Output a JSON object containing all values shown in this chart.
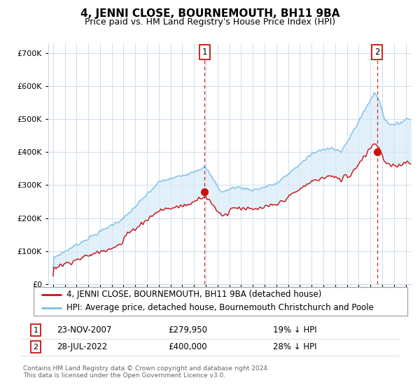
{
  "title": "4, JENNI CLOSE, BOURNEMOUTH, BH11 9BA",
  "subtitle": "Price paid vs. HM Land Registry's House Price Index (HPI)",
  "hpi_color": "#7dbfe8",
  "price_paid_color": "#cc1111",
  "dashed_line_color": "#cc1111",
  "fill_color": "#d6eaf8",
  "background_color": "#ffffff",
  "grid_color": "#c8d8e8",
  "ylim": [
    0,
    730000
  ],
  "yticks": [
    0,
    100000,
    200000,
    300000,
    400000,
    500000,
    600000,
    700000
  ],
  "legend_entry1": "4, JENNI CLOSE, BOURNEMOUTH, BH11 9BA (detached house)",
  "legend_entry2": "HPI: Average price, detached house, Bournemouth Christchurch and Poole",
  "sale1_price": 279950,
  "sale1_date_str": "23-NOV-2007",
  "sale1_pct": "19% ↓ HPI",
  "sale2_price": 400000,
  "sale2_date_str": "28-JUL-2022",
  "sale2_pct": "28% ↓ HPI",
  "footer": "Contains HM Land Registry data © Crown copyright and database right 2024.\nThis data is licensed under the Open Government Licence v3.0.",
  "title_fontsize": 11,
  "subtitle_fontsize": 9,
  "legend_fontsize": 8.5
}
